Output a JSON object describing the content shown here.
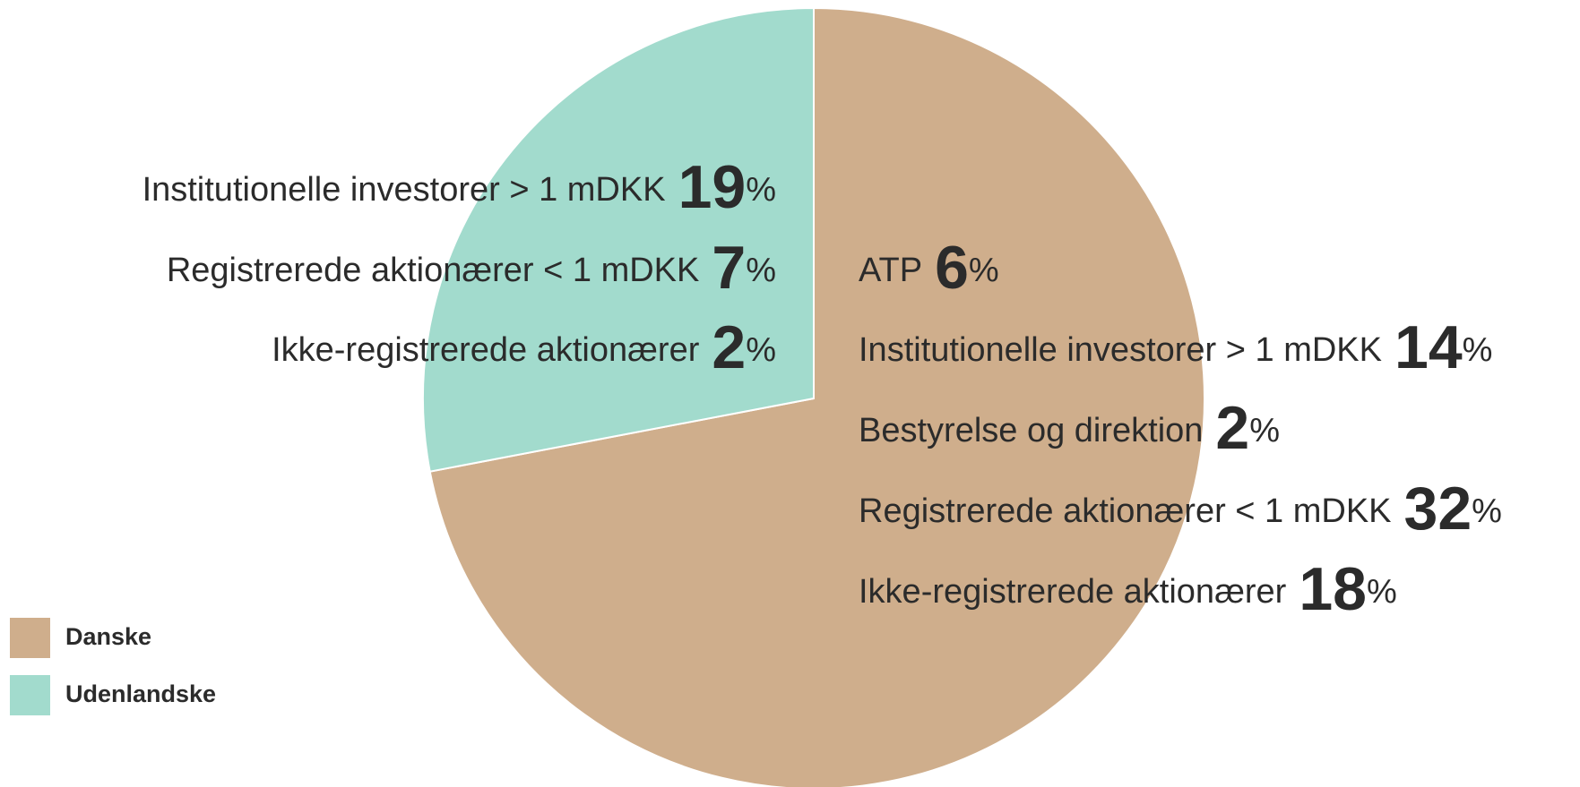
{
  "chart_data": {
    "type": "pie",
    "categories": [
      "Danske",
      "Udenlandske"
    ],
    "values": [
      72,
      28
    ],
    "colors": [
      "#cfae8c",
      "#a2dbcd"
    ],
    "legend": "bottom-left",
    "breakdown": [
      {
        "items": [
          {
            "label": "ATP",
            "value": 6,
            "unit": "%"
          },
          {
            "label": "Institutionelle investorer > 1 mDKK",
            "value": 14,
            "unit": "%"
          },
          {
            "label": "Bestyrelse og direktion",
            "value": 2,
            "unit": "%"
          },
          {
            "label": "Registrerede aktionærer < 1 mDKK",
            "value": 32,
            "unit": "%"
          },
          {
            "label": "Ikke-registrerede aktionærer",
            "value": 18,
            "unit": "%"
          }
        ]
      },
      {
        "items": [
          {
            "label": "Institutionelle investorer > 1 mDKK",
            "value": 19,
            "unit": "%"
          },
          {
            "label": "Registrerede aktionærer < 1 mDKK",
            "value": 7,
            "unit": "%"
          },
          {
            "label": "Ikke-registrerede aktionærer",
            "value": 2,
            "unit": "%"
          }
        ]
      }
    ]
  }
}
